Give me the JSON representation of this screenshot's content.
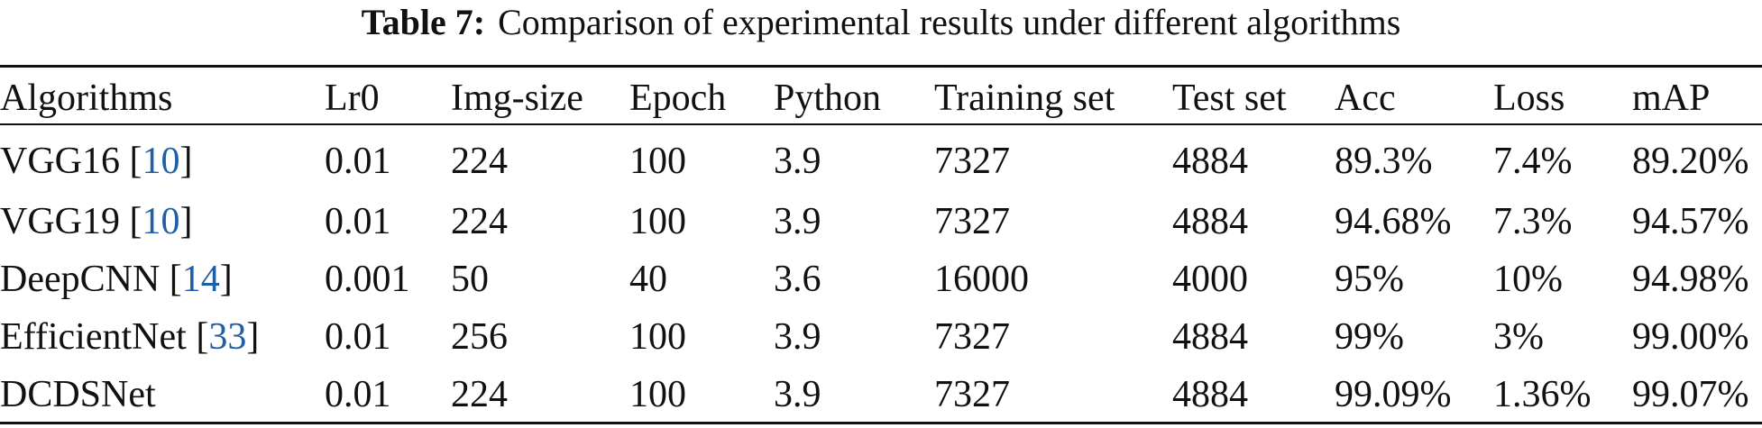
{
  "caption": {
    "label": "Table 7:",
    "text": "Comparison of experimental results under different algorithms"
  },
  "table": {
    "headers": [
      "Algorithms",
      "Lr0",
      "Img-size",
      "Epoch",
      "Python",
      "Training set",
      "Test set",
      "Acc",
      "Loss",
      "mAP"
    ],
    "rows": [
      {
        "name": "VGG16",
        "ref": "10",
        "lr0": "0.01",
        "img_size": "224",
        "epoch": "100",
        "python": "3.9",
        "training_set": "7327",
        "test_set": "4884",
        "acc": "89.3%",
        "loss": "7.4%",
        "map": "89.20%"
      },
      {
        "name": "VGG19",
        "ref": "10",
        "lr0": "0.01",
        "img_size": "224",
        "epoch": "100",
        "python": "3.9",
        "training_set": "7327",
        "test_set": "4884",
        "acc": "94.68%",
        "loss": "7.3%",
        "map": "94.57%"
      },
      {
        "name": "DeepCNN",
        "ref": "14",
        "lr0": "0.001",
        "img_size": "50",
        "epoch": "40",
        "python": "3.6",
        "training_set": "16000",
        "test_set": "4000",
        "acc": "95%",
        "loss": "10%",
        "map": "94.98%"
      },
      {
        "name": "EfficientNet",
        "ref": "33",
        "lr0": "0.01",
        "img_size": "256",
        "epoch": "100",
        "python": "3.9",
        "training_set": "7327",
        "test_set": "4884",
        "acc": "99%",
        "loss": "3%",
        "map": "99.00%"
      },
      {
        "name": "DCDSNet",
        "ref": "",
        "lr0": "0.01",
        "img_size": "224",
        "epoch": "100",
        "python": "3.9",
        "training_set": "7327",
        "test_set": "4884",
        "acc": "99.09%",
        "loss": "1.36%",
        "map": "99.07%"
      }
    ]
  },
  "colors": {
    "text": "#111111",
    "ref_link": "#1f5fa8"
  }
}
